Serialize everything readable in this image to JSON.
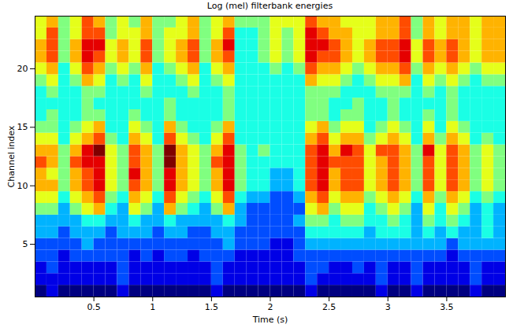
{
  "chart_data": {
    "type": "heatmap",
    "title": "Log (mel) filterbank energies",
    "x_label": "Time (s)",
    "y_label": "Channel index",
    "x": [
      0,
      0.1,
      0.2,
      0.3,
      0.4,
      0.5,
      0.6,
      0.7,
      0.8,
      0.9,
      1,
      1.1,
      1.2,
      1.3,
      1.4,
      1.5,
      1.6,
      1.7,
      1.8,
      1.9,
      2,
      2.1,
      2.2,
      2.3,
      2.4,
      2.5,
      2.6,
      2.7,
      2.8,
      2.9,
      3,
      3.1,
      3.2,
      3.3,
      3.4,
      3.5,
      3.6,
      3.7,
      3.8,
      3.9
    ],
    "y": [
      1,
      2,
      3,
      4,
      5,
      6,
      7,
      8,
      9,
      10,
      11,
      12,
      13,
      14,
      15,
      16,
      17,
      18,
      19,
      20,
      21,
      22,
      23,
      24
    ],
    "values": [
      [
        0,
        1,
        0,
        0,
        0,
        0,
        0,
        1,
        0,
        0,
        0,
        0,
        0,
        0,
        0,
        1,
        0,
        0,
        0,
        0,
        0,
        0,
        0,
        1,
        0,
        0,
        0,
        0,
        0,
        1,
        0,
        0,
        1,
        0,
        0,
        0,
        0,
        1,
        0,
        0
      ],
      [
        1,
        1,
        1,
        1,
        1,
        1,
        1,
        2,
        1,
        1,
        1,
        1,
        1,
        1,
        1,
        2,
        1,
        1,
        1,
        1,
        1,
        1,
        1,
        2,
        1,
        1,
        1,
        1,
        1,
        2,
        1,
        1,
        2,
        1,
        1,
        1,
        1,
        2,
        1,
        1
      ],
      [
        1,
        2,
        1,
        1,
        1,
        1,
        1,
        2,
        1,
        1,
        1,
        1,
        1,
        1,
        1,
        2,
        1,
        1,
        1,
        1,
        1,
        1,
        1,
        2,
        2,
        1,
        1,
        2,
        1,
        2,
        1,
        1,
        2,
        1,
        1,
        1,
        1,
        2,
        1,
        1
      ],
      [
        2,
        2,
        1,
        2,
        2,
        2,
        2,
        2,
        1,
        2,
        1,
        2,
        2,
        1,
        2,
        2,
        2,
        1,
        1,
        1,
        1,
        1,
        2,
        2,
        2,
        2,
        2,
        2,
        2,
        2,
        2,
        2,
        2,
        2,
        2,
        1,
        2,
        2,
        2,
        2
      ],
      [
        2,
        2,
        2,
        2,
        3,
        2,
        2,
        2,
        2,
        2,
        2,
        2,
        2,
        2,
        2,
        2,
        3,
        2,
        2,
        2,
        1,
        1,
        2,
        3,
        3,
        3,
        3,
        3,
        3,
        3,
        3,
        3,
        3,
        3,
        3,
        2,
        3,
        3,
        3,
        3
      ],
      [
        3,
        3,
        2,
        3,
        3,
        3,
        2,
        3,
        3,
        3,
        2,
        3,
        3,
        2,
        2,
        3,
        3,
        2,
        2,
        2,
        2,
        2,
        2,
        4,
        4,
        4,
        4,
        4,
        3,
        4,
        4,
        4,
        3,
        4,
        3,
        4,
        3,
        3,
        4,
        3
      ],
      [
        3,
        3,
        3,
        3,
        4,
        4,
        3,
        3,
        4,
        3,
        3,
        4,
        3,
        3,
        3,
        3,
        4,
        3,
        2,
        2,
        2,
        2,
        3,
        5,
        5,
        4,
        5,
        5,
        4,
        4,
        5,
        4,
        3,
        5,
        4,
        5,
        4,
        3,
        4,
        3
      ],
      [
        5,
        5,
        3,
        5,
        6,
        7,
        4,
        3,
        6,
        5,
        3,
        7,
        5,
        4,
        3,
        5,
        7,
        3,
        2,
        2,
        2,
        2,
        2,
        6,
        7,
        5,
        6,
        6,
        4,
        5,
        6,
        5,
        3,
        6,
        4,
        6,
        5,
        3,
        4,
        3
      ],
      [
        6,
        6,
        4,
        6,
        7,
        8,
        5,
        4,
        7,
        6,
        4,
        8,
        6,
        5,
        4,
        6,
        8,
        4,
        3,
        3,
        2,
        2,
        3,
        7,
        8,
        6,
        7,
        7,
        5,
        6,
        7,
        6,
        4,
        7,
        5,
        7,
        6,
        4,
        5,
        4
      ],
      [
        7,
        7,
        5,
        7,
        8,
        9,
        6,
        5,
        8,
        7,
        5,
        9,
        7,
        6,
        5,
        7,
        9,
        5,
        4,
        4,
        3,
        3,
        4,
        8,
        9,
        7,
        8,
        8,
        6,
        7,
        8,
        7,
        5,
        8,
        6,
        8,
        7,
        5,
        6,
        5
      ],
      [
        7,
        6,
        5,
        7,
        8,
        9,
        6,
        5,
        9,
        7,
        5,
        9,
        7,
        6,
        5,
        7,
        9,
        5,
        4,
        4,
        3,
        3,
        4,
        8,
        9,
        7,
        8,
        8,
        6,
        7,
        8,
        7,
        5,
        8,
        6,
        8,
        7,
        5,
        6,
        5
      ],
      [
        8,
        7,
        5,
        8,
        9,
        9,
        6,
        5,
        8,
        7,
        5,
        10,
        7,
        6,
        5,
        8,
        9,
        5,
        4,
        4,
        4,
        4,
        4,
        8,
        9,
        8,
        8,
        8,
        6,
        7,
        8,
        7,
        5,
        8,
        6,
        8,
        7,
        5,
        6,
        5
      ],
      [
        7,
        7,
        5,
        7,
        9,
        10,
        6,
        5,
        8,
        7,
        5,
        10,
        7,
        6,
        5,
        7,
        9,
        5,
        4,
        5,
        4,
        4,
        4,
        8,
        9,
        7,
        9,
        8,
        6,
        8,
        8,
        7,
        5,
        9,
        6,
        8,
        7,
        5,
        6,
        5
      ],
      [
        6,
        6,
        4,
        6,
        7,
        8,
        5,
        4,
        7,
        6,
        4,
        8,
        6,
        5,
        4,
        6,
        8,
        4,
        4,
        4,
        4,
        4,
        4,
        7,
        8,
        6,
        7,
        7,
        5,
        6,
        7,
        6,
        4,
        7,
        5,
        7,
        6,
        4,
        5,
        4
      ],
      [
        5,
        5,
        4,
        5,
        6,
        7,
        4,
        4,
        6,
        5,
        4,
        7,
        5,
        4,
        4,
        5,
        7,
        4,
        4,
        4,
        4,
        4,
        4,
        6,
        7,
        5,
        6,
        6,
        4,
        5,
        6,
        5,
        4,
        6,
        4,
        6,
        5,
        4,
        4,
        4
      ],
      [
        4,
        5,
        4,
        4,
        5,
        5,
        4,
        4,
        5,
        4,
        4,
        5,
        4,
        4,
        4,
        4,
        5,
        4,
        4,
        4,
        4,
        4,
        4,
        5,
        5,
        4,
        5,
        5,
        4,
        4,
        5,
        4,
        4,
        5,
        4,
        5,
        4,
        4,
        4,
        4
      ],
      [
        4,
        4,
        4,
        4,
        5,
        4,
        4,
        4,
        4,
        4,
        4,
        5,
        4,
        4,
        4,
        4,
        5,
        4,
        4,
        4,
        4,
        4,
        4,
        5,
        5,
        4,
        4,
        5,
        4,
        4,
        5,
        4,
        4,
        4,
        4,
        5,
        4,
        4,
        4,
        4
      ],
      [
        4,
        5,
        4,
        4,
        5,
        5,
        4,
        4,
        4,
        5,
        4,
        4,
        4,
        5,
        4,
        4,
        5,
        4,
        4,
        4,
        4,
        4,
        4,
        5,
        5,
        5,
        4,
        4,
        4,
        5,
        5,
        5,
        4,
        5,
        4,
        5,
        4,
        4,
        4,
        4
      ],
      [
        5,
        6,
        4,
        5,
        7,
        6,
        4,
        5,
        4,
        6,
        4,
        4,
        5,
        6,
        4,
        5,
        6,
        4,
        4,
        4,
        4,
        4,
        4,
        7,
        6,
        6,
        5,
        4,
        5,
        6,
        6,
        7,
        4,
        6,
        5,
        6,
        5,
        4,
        5,
        5
      ],
      [
        6,
        7,
        4,
        6,
        8,
        7,
        5,
        6,
        5,
        7,
        4,
        5,
        6,
        7,
        4,
        6,
        7,
        4,
        4,
        4,
        5,
        4,
        5,
        8,
        7,
        7,
        6,
        5,
        6,
        7,
        7,
        8,
        5,
        7,
        6,
        7,
        6,
        5,
        6,
        6
      ],
      [
        7,
        8,
        5,
        7,
        9,
        8,
        6,
        7,
        6,
        8,
        5,
        6,
        7,
        8,
        5,
        7,
        8,
        4,
        4,
        5,
        6,
        5,
        6,
        9,
        8,
        8,
        7,
        6,
        7,
        8,
        8,
        9,
        6,
        8,
        7,
        8,
        7,
        6,
        7,
        7
      ],
      [
        7,
        8,
        5,
        7,
        9,
        9,
        6,
        7,
        6,
        8,
        5,
        6,
        7,
        8,
        5,
        7,
        9,
        4,
        4,
        5,
        6,
        5,
        6,
        9,
        9,
        8,
        7,
        6,
        7,
        8,
        8,
        9,
        6,
        8,
        7,
        8,
        7,
        6,
        7,
        7
      ],
      [
        6,
        8,
        5,
        6,
        8,
        8,
        5,
        6,
        6,
        7,
        5,
        6,
        6,
        7,
        5,
        6,
        8,
        4,
        4,
        5,
        6,
        5,
        6,
        9,
        8,
        7,
        7,
        6,
        6,
        7,
        7,
        8,
        5,
        7,
        6,
        7,
        7,
        6,
        7,
        7
      ],
      [
        6,
        7,
        5,
        6,
        8,
        7,
        5,
        6,
        5,
        7,
        5,
        5,
        6,
        7,
        5,
        6,
        7,
        5,
        5,
        5,
        6,
        6,
        6,
        8,
        7,
        7,
        6,
        6,
        6,
        7,
        7,
        8,
        5,
        7,
        6,
        7,
        7,
        6,
        7,
        7
      ]
    ],
    "xlim": [
      0,
      4
    ],
    "ylim": [
      0.5,
      24.5
    ],
    "xticks": [
      0.5,
      1,
      1.5,
      2,
      2.5,
      3,
      3.5
    ],
    "yticks": [
      5,
      10,
      15,
      20
    ]
  }
}
